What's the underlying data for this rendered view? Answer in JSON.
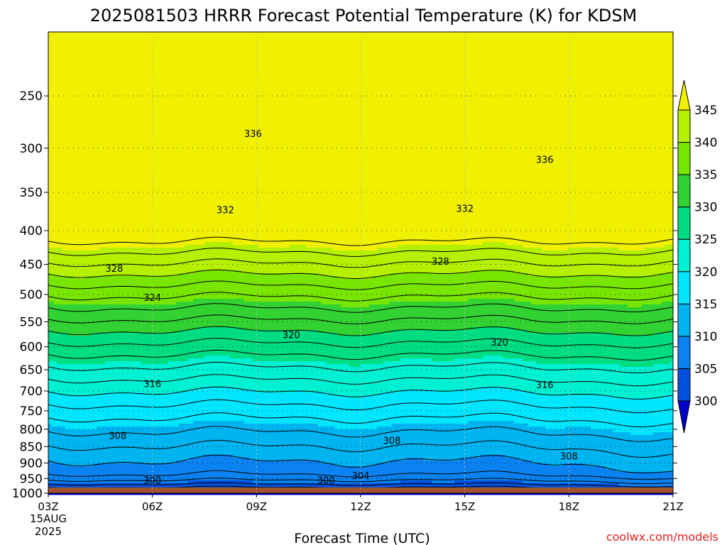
{
  "chart_data": {
    "type": "heatmap",
    "title": "2025081503 HRRR Forecast Potential Temperature (K) for KDSM",
    "xlabel": "Forecast Time (UTC)",
    "ylabel": "",
    "x_ticks": [
      "03Z",
      "06Z",
      "09Z",
      "12Z",
      "15Z",
      "18Z",
      "21Z"
    ],
    "x_hours": [
      3,
      6,
      9,
      12,
      15,
      18,
      21
    ],
    "x_date_lines": [
      "15AUG",
      "2025"
    ],
    "y_ticks": [
      250,
      300,
      350,
      400,
      450,
      500,
      550,
      600,
      650,
      700,
      750,
      800,
      850,
      900,
      950,
      1000
    ],
    "ylim": [
      1000,
      200
    ],
    "y_scale": "log-pressure",
    "grid": true,
    "surface_level_hpa": 980,
    "surface_color": "#a0522d",
    "colorbar": {
      "levels": [
        300,
        305,
        310,
        315,
        320,
        325,
        330,
        335,
        340,
        345
      ],
      "labels": [
        "300",
        "305",
        "310",
        "315",
        "320",
        "325",
        "330",
        "335",
        "340",
        "345"
      ],
      "colors": [
        "#0000c8",
        "#0050e0",
        "#0a82f0",
        "#00b4f0",
        "#00e6ff",
        "#00f0d2",
        "#00dc82",
        "#32d232",
        "#78e600",
        "#b4f000",
        "#f0f000"
      ]
    },
    "contour_labels": [
      {
        "text": "336",
        "hour": 8.9,
        "p": 285
      },
      {
        "text": "336",
        "hour": 17.3,
        "p": 312
      },
      {
        "text": "332",
        "hour": 8.1,
        "p": 372
      },
      {
        "text": "332",
        "hour": 15.0,
        "p": 370
      },
      {
        "text": "328",
        "hour": 4.9,
        "p": 456
      },
      {
        "text": "328",
        "hour": 14.3,
        "p": 445
      },
      {
        "text": "324",
        "hour": 6.0,
        "p": 505
      },
      {
        "text": "320",
        "hour": 10.0,
        "p": 575
      },
      {
        "text": "320",
        "hour": 16.0,
        "p": 590
      },
      {
        "text": "316",
        "hour": 6.0,
        "p": 682
      },
      {
        "text": "316",
        "hour": 17.3,
        "p": 685
      },
      {
        "text": "308",
        "hour": 5.0,
        "p": 817
      },
      {
        "text": "308",
        "hour": 12.9,
        "p": 832
      },
      {
        "text": "308",
        "hour": 18.0,
        "p": 878
      },
      {
        "text": "304",
        "hour": 12.0,
        "p": 940
      },
      {
        "text": "300",
        "hour": 6.0,
        "p": 955
      },
      {
        "text": "300",
        "hour": 11.0,
        "p": 955
      }
    ]
  },
  "watermark": "coolwx.com/models"
}
